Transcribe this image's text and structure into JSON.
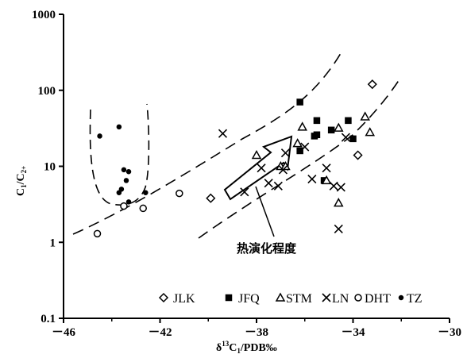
{
  "chart_data": {
    "type": "scatter",
    "x_axis": {
      "label_base": "δ",
      "label_sup": "13",
      "label_rest": "C",
      "label_sub": "1",
      "label_tail": "/PDB‰",
      "range": [
        -46,
        -30
      ],
      "ticks": [
        -46,
        -42,
        -38,
        -34,
        -30
      ],
      "tick_labels": [
        "－46",
        "－42",
        "－38",
        "－34",
        "－30"
      ]
    },
    "y_axis": {
      "label_c1": "C",
      "label_sub1": "1",
      "label_mid": "/C",
      "label_sub2": "2+",
      "scale": "log",
      "range": [
        0.1,
        1000
      ],
      "ticks": [
        0.1,
        1,
        10,
        100,
        1000
      ],
      "tick_labels": [
        "0.1",
        "1",
        "10",
        "100",
        "1000"
      ]
    },
    "grid": false,
    "legend_placement": "bottom-right",
    "annotation": "热演化程度",
    "series": [
      {
        "name": "JLK",
        "marker": "diamond",
        "points": [
          [
            -39.9,
            3.8
          ],
          [
            -33.8,
            14.0
          ],
          [
            -33.2,
            120.0
          ]
        ]
      },
      {
        "name": "JFQ",
        "marker": "square",
        "points": [
          [
            -36.2,
            70.0
          ],
          [
            -35.5,
            40.0
          ],
          [
            -34.9,
            30.0
          ],
          [
            -34.2,
            40.0
          ],
          [
            -34.0,
            23.0
          ],
          [
            -35.6,
            25.0
          ],
          [
            -36.2,
            16.0
          ],
          [
            -35.2,
            6.5
          ],
          [
            -35.5,
            26.0
          ]
        ]
      },
      {
        "name": "STM",
        "marker": "triangle",
        "points": [
          [
            -36.1,
            33.0
          ],
          [
            -36.3,
            20.0
          ],
          [
            -37.0,
            10.0
          ],
          [
            -38.0,
            14.0
          ],
          [
            -35.1,
            6.5
          ],
          [
            -34.6,
            32.0
          ],
          [
            -33.5,
            45.0
          ],
          [
            -33.3,
            28.0
          ],
          [
            -34.6,
            3.3
          ],
          [
            -36.8,
            10.0
          ]
        ]
      },
      {
        "name": "LN",
        "marker": "cross",
        "points": [
          [
            -39.4,
            27.0
          ],
          [
            -38.5,
            4.6
          ],
          [
            -37.8,
            9.5
          ],
          [
            -37.5,
            6.0
          ],
          [
            -37.1,
            5.5
          ],
          [
            -36.8,
            15.0
          ],
          [
            -36.0,
            18.0
          ],
          [
            -35.7,
            6.8
          ],
          [
            -35.1,
            9.5
          ],
          [
            -34.8,
            5.5
          ],
          [
            -34.5,
            5.3
          ],
          [
            -34.3,
            24.0
          ],
          [
            -34.6,
            1.5
          ],
          [
            -36.9,
            9.0
          ]
        ]
      },
      {
        "name": "DHT",
        "marker": "circle",
        "points": [
          [
            -44.6,
            1.3
          ],
          [
            -43.5,
            3.0
          ],
          [
            -42.7,
            2.8
          ],
          [
            -41.2,
            4.4
          ]
        ]
      },
      {
        "name": "TZ",
        "marker": "dot",
        "points": [
          [
            -44.5,
            25.0
          ],
          [
            -43.7,
            33.0
          ],
          [
            -43.5,
            9.0
          ],
          [
            -43.3,
            8.5
          ],
          [
            -43.4,
            6.5
          ],
          [
            -43.6,
            5.0
          ],
          [
            -43.7,
            4.5
          ],
          [
            -43.3,
            3.4
          ],
          [
            -42.6,
            4.5
          ]
        ]
      }
    ]
  }
}
